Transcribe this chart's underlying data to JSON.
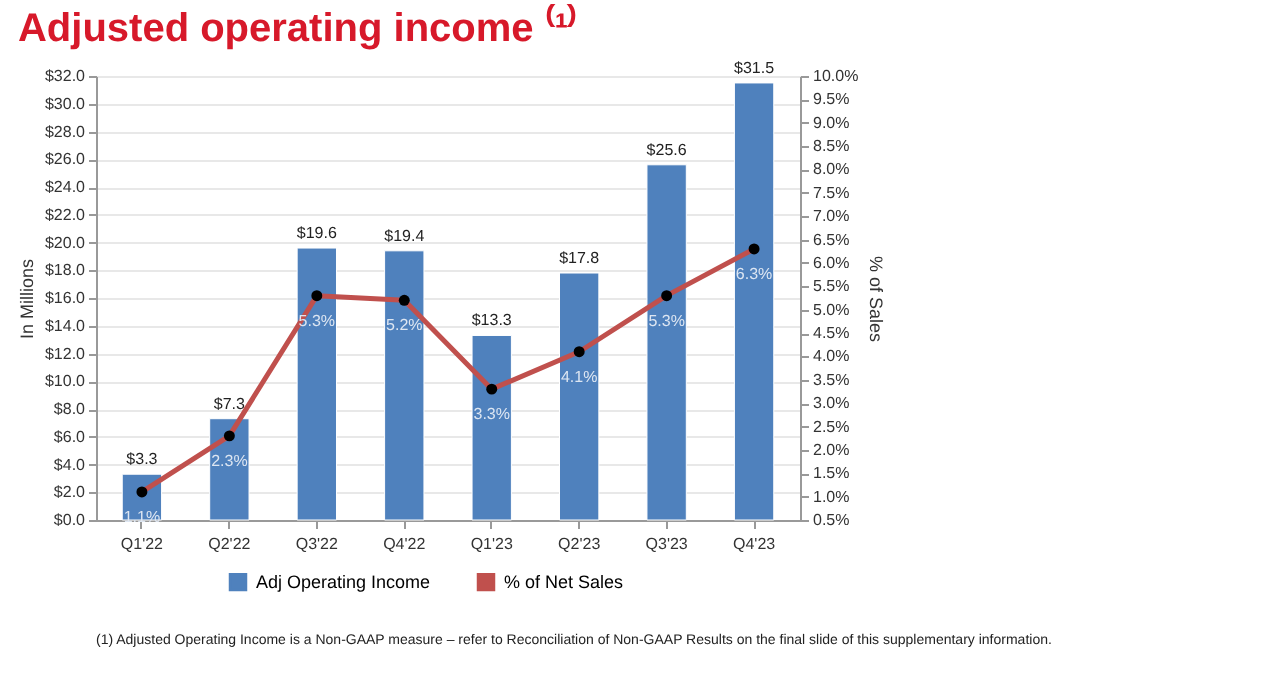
{
  "chart_data": {
    "type": "bar",
    "title": "Adjusted operating income ⁽¹⁾",
    "categories": [
      "Q1'22",
      "Q2'22",
      "Q3'22",
      "Q4'22",
      "Q1'23",
      "Q2'23",
      "Q3'23",
      "Q4'23"
    ],
    "series": [
      {
        "name": "Adj Operating Income",
        "type": "bar",
        "color": "#4f81bd",
        "values": [
          3.3,
          7.3,
          19.6,
          19.4,
          13.3,
          17.8,
          25.6,
          31.5
        ],
        "value_labels": [
          "$3.3",
          "$7.3",
          "$19.6",
          "$19.4",
          "$13.3",
          "$17.8",
          "$25.6",
          "$31.5"
        ]
      },
      {
        "name": "% of Net Sales",
        "type": "line",
        "axis": "y2",
        "color": "#c0504d",
        "marker": "circle",
        "values": [
          1.1,
          2.3,
          5.3,
          5.2,
          3.3,
          4.1,
          5.3,
          6.3
        ],
        "value_labels": [
          "1.1%",
          "2.3%",
          "5.3%",
          "5.2%",
          "3.3%",
          "4.1%",
          "5.3%",
          "6.3%"
        ]
      }
    ],
    "ylabel": "In Millions",
    "y2label": "% of Sales",
    "ylim": [
      0,
      32
    ],
    "yticks": [
      {
        "value": 0,
        "label": "$0.0"
      },
      {
        "value": 2,
        "label": "$2.0"
      },
      {
        "value": 4,
        "label": "$4.0"
      },
      {
        "value": 6,
        "label": "$6.0"
      },
      {
        "value": 8,
        "label": "$8.0"
      },
      {
        "value": 10,
        "label": "$10.0"
      },
      {
        "value": 12,
        "label": "$12.0"
      },
      {
        "value": 14,
        "label": "$14.0"
      },
      {
        "value": 16,
        "label": "$16.0"
      },
      {
        "value": 18,
        "label": "$18.0"
      },
      {
        "value": 20,
        "label": "$20.0"
      },
      {
        "value": 22,
        "label": "$22.0"
      },
      {
        "value": 24,
        "label": "$24.0"
      },
      {
        "value": 26,
        "label": "$26.0"
      },
      {
        "value": 28,
        "label": "$28.0"
      },
      {
        "value": 30,
        "label": "$30.0"
      },
      {
        "value": 32,
        "label": "$32.0"
      }
    ],
    "y2lim": [
      0.5,
      10
    ],
    "y2ticks": [
      {
        "value": 0.5,
        "label": "0.5%"
      },
      {
        "value": 1,
        "label": "1.0%"
      },
      {
        "value": 1.5,
        "label": "1.5%"
      },
      {
        "value": 2,
        "label": "2.0%"
      },
      {
        "value": 2.5,
        "label": "2.5%"
      },
      {
        "value": 3,
        "label": "3.0%"
      },
      {
        "value": 3.5,
        "label": "3.5%"
      },
      {
        "value": 4,
        "label": "4.0%"
      },
      {
        "value": 4.5,
        "label": "4.5%"
      },
      {
        "value": 5,
        "label": "5.0%"
      },
      {
        "value": 5.5,
        "label": "5.5%"
      },
      {
        "value": 6,
        "label": "6.0%"
      },
      {
        "value": 6.5,
        "label": "6.5%"
      },
      {
        "value": 7,
        "label": "7.0%"
      },
      {
        "value": 7.5,
        "label": "7.5%"
      },
      {
        "value": 8,
        "label": "8.0%"
      },
      {
        "value": 8.5,
        "label": "8.5%"
      },
      {
        "value": 9,
        "label": "9.0%"
      },
      {
        "value": 9.5,
        "label": "9.5%"
      },
      {
        "value": 10,
        "label": "10.0%"
      }
    ],
    "grid": "y",
    "legend": "bottom",
    "annotations": [
      "(1)  Adjusted Operating Income is a Non-GAAP measure – refer to Reconciliation of Non-GAAP Results on the final slide of this supplementary information."
    ]
  }
}
